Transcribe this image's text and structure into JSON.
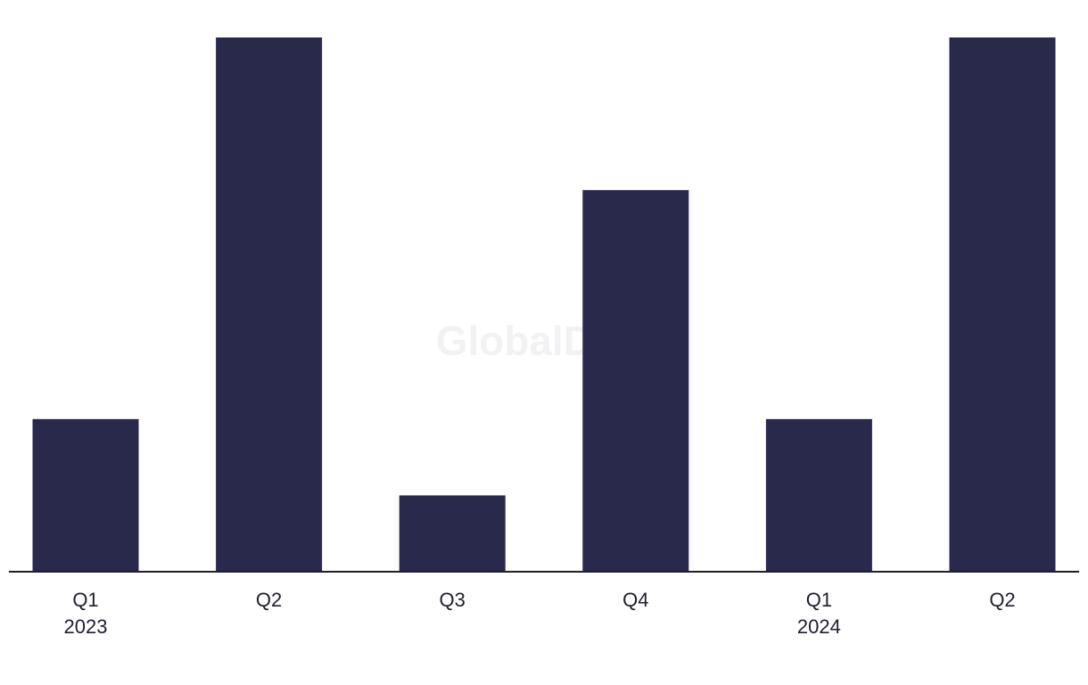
{
  "chart_data": {
    "type": "bar",
    "watermark": "GlobalData",
    "categories": [
      "Q1",
      "Q2",
      "Q3",
      "Q4",
      "Q1",
      "Q2"
    ],
    "category_years": [
      "2023",
      null,
      null,
      null,
      "2024",
      null
    ],
    "values": [
      2,
      7,
      1,
      5,
      2,
      7
    ],
    "color": "#29294b",
    "ylim": [
      0,
      7
    ]
  }
}
